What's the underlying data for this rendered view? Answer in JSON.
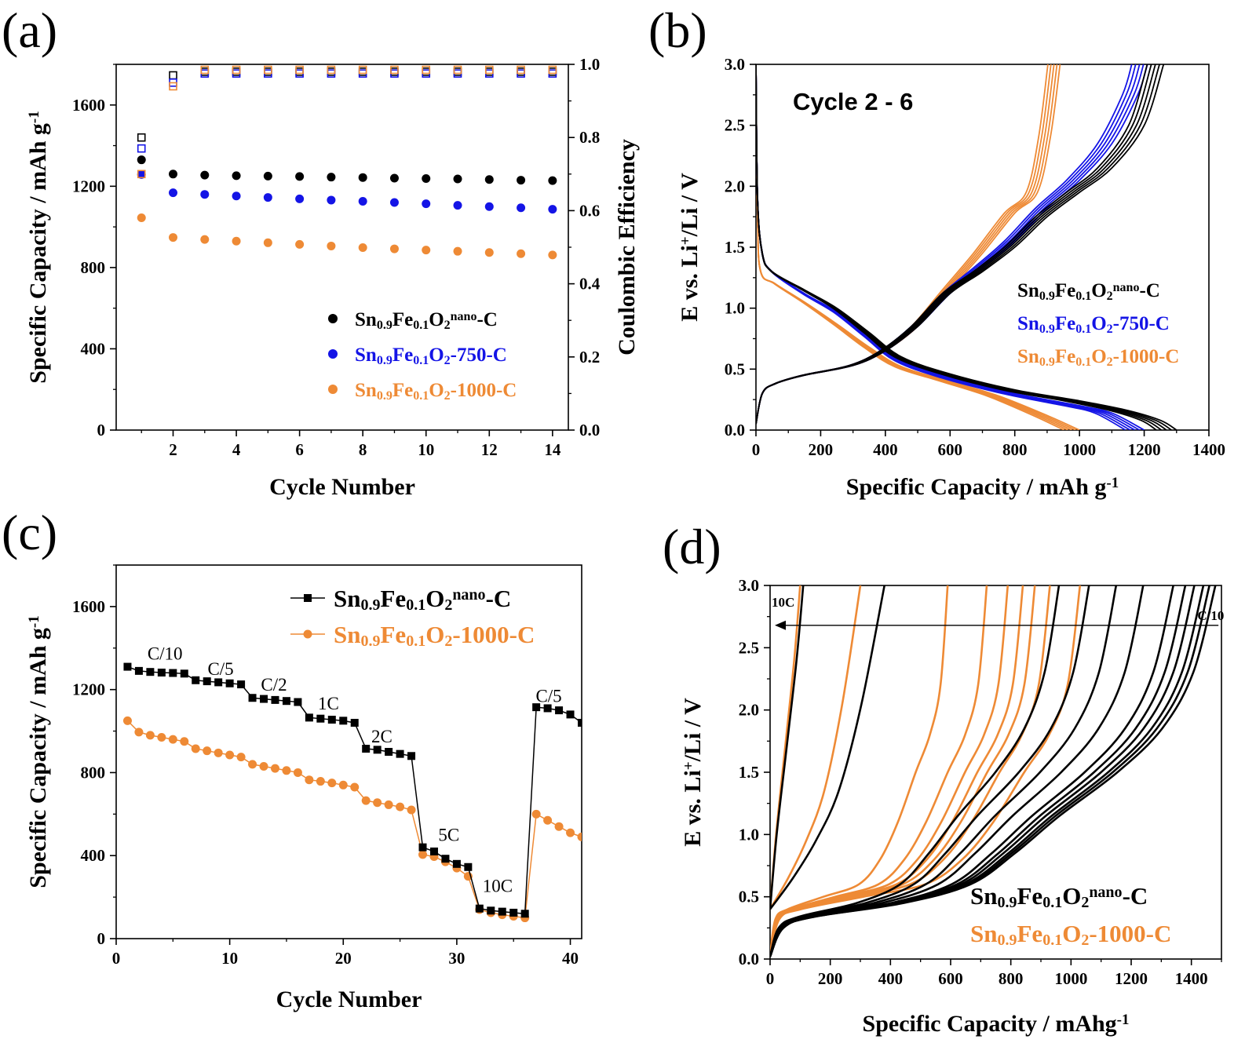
{
  "colors": {
    "black": "#000000",
    "blue": "#1414e6",
    "orange": "#ee8a35"
  },
  "panels": {
    "a": {
      "letter": "(a)"
    },
    "b": {
      "letter": "(b)",
      "label": "Cycle 2 - 6"
    },
    "c": {
      "letter": "(c)"
    },
    "d": {
      "letter": "(d)"
    }
  },
  "chart_data": [
    {
      "id": "a",
      "type": "scatter",
      "xlabel": "Cycle Number",
      "ylabel": "Specific Capacity / mAh g",
      "ylabel_sup": "-1",
      "y2label": "Coulombic Efficiency",
      "xlim": [
        0.2,
        14.5
      ],
      "ylim": [
        0,
        1800
      ],
      "y2lim": [
        0,
        1.0
      ],
      "xticks": [
        2,
        4,
        6,
        8,
        10,
        12,
        14
      ],
      "yticks": [
        0,
        400,
        800,
        1200,
        1600
      ],
      "y2ticks": [
        0.0,
        0.2,
        0.4,
        0.6,
        0.8,
        1.0
      ],
      "y2ticklabels": [
        "0.0",
        "0.2",
        "0.4",
        "0.6",
        "0.8",
        "1.0"
      ],
      "legend_position": "bottom-right",
      "x": [
        1,
        2,
        3,
        4,
        5,
        6,
        7,
        8,
        9,
        10,
        11,
        12,
        13,
        14
      ],
      "series": [
        {
          "name": "Sn0.9Fe0.1O2nano-C",
          "color": "black",
          "capacity": [
            1330,
            1260,
            1255,
            1252,
            1250,
            1248,
            1245,
            1243,
            1240,
            1238,
            1236,
            1233,
            1230,
            1228
          ],
          "efficiency": [
            0.8,
            0.97,
            0.98,
            0.98,
            0.98,
            0.98,
            0.98,
            0.98,
            0.98,
            0.98,
            0.98,
            0.98,
            0.98,
            0.98
          ]
        },
        {
          "name": "Sn0.9Fe0.1O2-750-C",
          "color": "blue",
          "capacity": [
            1258,
            1168,
            1160,
            1152,
            1145,
            1138,
            1132,
            1126,
            1120,
            1114,
            1106,
            1100,
            1094,
            1087
          ],
          "efficiency": [
            0.77,
            0.95,
            0.975,
            0.975,
            0.975,
            0.975,
            0.975,
            0.975,
            0.975,
            0.975,
            0.975,
            0.975,
            0.975,
            0.975
          ]
        },
        {
          "name": "Sn0.9Fe0.1O2-1000-C",
          "color": "orange",
          "capacity": [
            1045,
            948,
            938,
            930,
            922,
            914,
            906,
            898,
            892,
            886,
            880,
            874,
            868,
            862
          ],
          "efficiency": [
            0.7,
            0.94,
            0.985,
            0.985,
            0.985,
            0.985,
            0.985,
            0.985,
            0.985,
            0.985,
            0.985,
            0.985,
            0.985,
            0.985
          ]
        }
      ]
    },
    {
      "id": "b",
      "type": "line",
      "xlabel": "Specific Capacity / mAh g",
      "xlabel_sup": "-1",
      "ylabel": "E vs. Li",
      "ylabel_sup": "+",
      "ylabel_end": "/Li / V",
      "xlim": [
        0,
        1400
      ],
      "ylim": [
        0,
        3.0
      ],
      "xticks": [
        0,
        200,
        400,
        600,
        800,
        1000,
        1200,
        1400
      ],
      "yticks": [
        0.0,
        0.5,
        1.0,
        1.5,
        2.0,
        2.5,
        3.0
      ],
      "yticklabels": [
        "0.0",
        "0.5",
        "1.0",
        "1.5",
        "2.0",
        "2.5",
        "3.0"
      ],
      "legend_position": "center-right",
      "series": [
        {
          "name": "Sn0.9Fe0.1O2nano-C",
          "color": "black",
          "discharge": [
            [
              0,
              3.0
            ],
            [
              5,
              1.9
            ],
            [
              20,
              1.45
            ],
            [
              50,
              1.3
            ],
            [
              150,
              1.15
            ],
            [
              250,
              1.0
            ],
            [
              350,
              0.8
            ],
            [
              450,
              0.6
            ],
            [
              600,
              0.46
            ],
            [
              800,
              0.33
            ],
            [
              1000,
              0.24
            ],
            [
              1150,
              0.16
            ],
            [
              1250,
              0.08
            ],
            [
              1300,
              0.0
            ]
          ],
          "charge": [
            [
              0,
              0.05
            ],
            [
              20,
              0.3
            ],
            [
              60,
              0.38
            ],
            [
              150,
              0.45
            ],
            [
              300,
              0.53
            ],
            [
              400,
              0.65
            ],
            [
              500,
              0.85
            ],
            [
              600,
              1.12
            ],
            [
              700,
              1.3
            ],
            [
              800,
              1.5
            ],
            [
              900,
              1.75
            ],
            [
              1000,
              1.95
            ],
            [
              1100,
              2.15
            ],
            [
              1200,
              2.5
            ],
            [
              1260,
              3.0
            ]
          ]
        },
        {
          "name": "Sn0.9Fe0.1O2-750-C",
          "color": "blue",
          "discharge": [
            [
              0,
              3.0
            ],
            [
              5,
              1.9
            ],
            [
              20,
              1.45
            ],
            [
              50,
              1.3
            ],
            [
              150,
              1.12
            ],
            [
              250,
              0.97
            ],
            [
              350,
              0.77
            ],
            [
              450,
              0.57
            ],
            [
              600,
              0.43
            ],
            [
              800,
              0.3
            ],
            [
              1000,
              0.2
            ],
            [
              1100,
              0.14
            ],
            [
              1200,
              0.0
            ]
          ],
          "charge": [
            [
              0,
              0.05
            ],
            [
              20,
              0.3
            ],
            [
              60,
              0.38
            ],
            [
              150,
              0.45
            ],
            [
              300,
              0.53
            ],
            [
              400,
              0.65
            ],
            [
              500,
              0.85
            ],
            [
              600,
              1.12
            ],
            [
              700,
              1.33
            ],
            [
              800,
              1.55
            ],
            [
              900,
              1.82
            ],
            [
              1000,
              2.05
            ],
            [
              1100,
              2.35
            ],
            [
              1180,
              2.75
            ],
            [
              1210,
              3.0
            ]
          ]
        },
        {
          "name": "Sn0.9Fe0.1O2-1000-C",
          "color": "orange",
          "discharge": [
            [
              0,
              3.0
            ],
            [
              5,
              1.75
            ],
            [
              15,
              1.3
            ],
            [
              60,
              1.2
            ],
            [
              150,
              1.05
            ],
            [
              250,
              0.87
            ],
            [
              350,
              0.68
            ],
            [
              450,
              0.52
            ],
            [
              600,
              0.4
            ],
            [
              750,
              0.28
            ],
            [
              900,
              0.12
            ],
            [
              1000,
              0.0
            ]
          ],
          "charge": [
            [
              0,
              0.05
            ],
            [
              20,
              0.3
            ],
            [
              60,
              0.38
            ],
            [
              150,
              0.45
            ],
            [
              300,
              0.53
            ],
            [
              400,
              0.65
            ],
            [
              500,
              0.85
            ],
            [
              600,
              1.15
            ],
            [
              700,
              1.45
            ],
            [
              800,
              1.78
            ],
            [
              870,
              1.95
            ],
            [
              910,
              2.4
            ],
            [
              940,
              3.0
            ]
          ]
        }
      ]
    },
    {
      "id": "c",
      "type": "line",
      "xlabel": "Cycle Number",
      "ylabel": "Specific Capacity / mAh g",
      "ylabel_sup": "-1",
      "xlim": [
        0,
        41
      ],
      "ylim": [
        0,
        1800
      ],
      "xticks": [
        0,
        10,
        20,
        30,
        40
      ],
      "yticks": [
        0,
        400,
        800,
        1200,
        1600
      ],
      "legend_position": "top-right",
      "rate_labels": [
        {
          "text": "C/10",
          "x": 4.3,
          "y": 1345
        },
        {
          "text": "C/5",
          "x": 9.2,
          "y": 1270
        },
        {
          "text": "C/2",
          "x": 13.9,
          "y": 1195
        },
        {
          "text": "1C",
          "x": 18.7,
          "y": 1105
        },
        {
          "text": "2C",
          "x": 23.4,
          "y": 945
        },
        {
          "text": "5C",
          "x": 29.3,
          "y": 470
        },
        {
          "text": "10C",
          "x": 33.6,
          "y": 225
        },
        {
          "text": "C/5",
          "x": 38.1,
          "y": 1140
        }
      ],
      "series": [
        {
          "name": "Sn0.9Fe0.1O2nano-C",
          "color": "black",
          "marker": "square",
          "x": [
            1,
            2,
            3,
            4,
            5,
            6,
            7,
            8,
            9,
            10,
            11,
            12,
            13,
            14,
            15,
            16,
            17,
            18,
            19,
            20,
            21,
            22,
            23,
            24,
            25,
            26,
            27,
            28,
            29,
            30,
            31,
            32,
            33,
            34,
            35,
            36,
            37,
            38,
            39,
            40,
            41
          ],
          "y": [
            1310,
            1290,
            1285,
            1282,
            1280,
            1277,
            1245,
            1240,
            1235,
            1230,
            1225,
            1160,
            1155,
            1150,
            1145,
            1140,
            1065,
            1060,
            1055,
            1050,
            1040,
            915,
            910,
            900,
            890,
            880,
            440,
            420,
            385,
            360,
            345,
            145,
            135,
            130,
            125,
            120,
            1115,
            1110,
            1100,
            1080,
            1040
          ]
        },
        {
          "name": "Sn0.9Fe0.1O2-1000-C",
          "color": "orange",
          "marker": "circle",
          "x": [
            1,
            2,
            3,
            4,
            5,
            6,
            7,
            8,
            9,
            10,
            11,
            12,
            13,
            14,
            15,
            16,
            17,
            18,
            19,
            20,
            21,
            22,
            23,
            24,
            25,
            26,
            27,
            28,
            29,
            30,
            31,
            32,
            33,
            34,
            35,
            36,
            37,
            38,
            39,
            40,
            41
          ],
          "y": [
            1050,
            995,
            980,
            970,
            960,
            950,
            915,
            905,
            895,
            885,
            875,
            840,
            830,
            820,
            810,
            800,
            765,
            758,
            750,
            740,
            730,
            665,
            655,
            645,
            635,
            620,
            405,
            395,
            370,
            340,
            300,
            140,
            125,
            115,
            108,
            100,
            600,
            570,
            540,
            510,
            490
          ]
        }
      ]
    },
    {
      "id": "d",
      "type": "line",
      "xlabel": "Specific Capacity / mAhg",
      "xlabel_sup": "-1",
      "ylabel": "E vs. Li",
      "ylabel_sup": "+",
      "ylabel_end": "/Li / V",
      "xlim": [
        0,
        1500
      ],
      "ylim": [
        0,
        3.0
      ],
      "xticks": [
        0,
        200,
        400,
        600,
        800,
        1000,
        1200,
        1400
      ],
      "yticks": [
        0.0,
        0.5,
        1.0,
        1.5,
        2.0,
        2.5,
        3.0
      ],
      "yticklabels": [
        "0.0",
        "0.5",
        "1.0",
        "1.5",
        "2.0",
        "2.5",
        "3.0"
      ],
      "legend_position": "bottom-right",
      "arrow_labels": {
        "left": "10C",
        "right": "C/10"
      },
      "arrow_y": 2.68,
      "series": [
        {
          "name": "Sn0.9Fe0.1O2nano-C",
          "color": "black",
          "end_capacities": [
            110,
            380,
            960,
            1060,
            1150,
            1240,
            1340,
            1380,
            1410,
            1440,
            1460,
            1480
          ]
        },
        {
          "name": "Sn0.9Fe0.1O2-1000-C",
          "color": "orange",
          "end_capacities": [
            100,
            300,
            590,
            720,
            790,
            840,
            880,
            930,
            1030
          ]
        }
      ]
    }
  ],
  "legends": {
    "a": [
      {
        "base": "Sn",
        "s1": "0.9",
        "m1": "Fe",
        "s2": "0.1",
        "m2": "O",
        "s3": "2",
        "sup": "nano",
        "tail": "-C",
        "color": "black"
      },
      {
        "base": "Sn",
        "s1": "0.9",
        "m1": "Fe",
        "s2": "0.1",
        "m2": "O",
        "s3": "2",
        "sup": "",
        "tail": "-750-C",
        "color": "blue"
      },
      {
        "base": "Sn",
        "s1": "0.9",
        "m1": "Fe",
        "s2": "0.1",
        "m2": "O",
        "s3": "2",
        "sup": "",
        "tail": "-1000-C",
        "color": "orange"
      }
    ]
  }
}
